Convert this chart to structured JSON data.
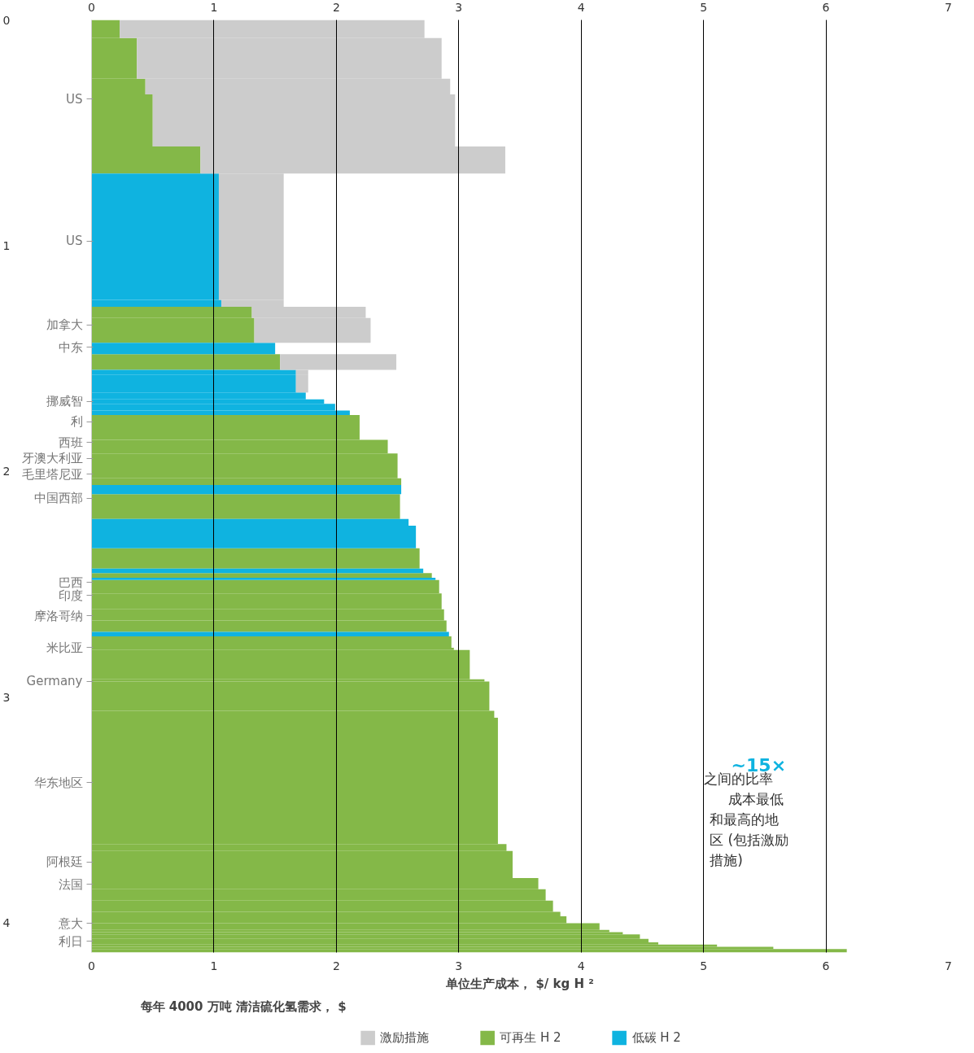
{
  "chart_data": {
    "type": "bar",
    "orientation": "horizontal",
    "stacked": true,
    "xlabel": "单位生产成本， $/ kg H ²",
    "x": [
      0.04,
      0.17,
      0.295,
      0.445,
      0.62,
      0.96,
      1.255,
      1.295,
      1.375,
      1.455,
      1.515,
      1.56,
      1.61,
      1.665,
      1.69,
      1.715,
      1.74,
      1.805,
      1.89,
      1.975,
      2.045,
      2.08,
      2.155,
      2.225,
      2.29,
      2.385,
      2.44,
      2.46,
      2.475,
      2.51,
      2.575,
      2.635,
      2.685,
      2.72,
      2.755,
      2.785,
      2.855,
      2.925,
      2.995,
      3.075,
      3.37,
      3.665,
      3.74,
      3.825,
      3.875,
      3.925,
      3.96,
      3.985,
      4.015,
      4.035,
      4.045,
      4.06,
      4.0775,
      4.09,
      4.1,
      4.11,
      4.1225
    ],
    "series": [
      {
        "name": "可再生 H 2",
        "color": "#84b848",
        "values": [
          0.23,
          0.37,
          0.44,
          0.5,
          0.89,
          null,
          null,
          1.31,
          1.33,
          null,
          1.54,
          null,
          null,
          null,
          null,
          null,
          null,
          2.19,
          2.42,
          2.5,
          2.53,
          null,
          2.52,
          null,
          null,
          2.68,
          null,
          2.78,
          null,
          2.84,
          2.86,
          2.88,
          2.9,
          null,
          2.94,
          2.96,
          3.09,
          3.21,
          3.25,
          3.29,
          3.32,
          3.39,
          3.44,
          3.65,
          3.71,
          3.77,
          3.83,
          3.88,
          4.15,
          4.23,
          4.34,
          4.48,
          4.55,
          4.63,
          5.11,
          5.57,
          6.17
        ]
      },
      {
        "name": "低碳 H 2",
        "color": "#0fb3e0",
        "values": [
          null,
          null,
          null,
          null,
          null,
          1.04,
          1.06,
          null,
          null,
          1.5,
          null,
          1.67,
          1.67,
          1.75,
          1.9,
          1.99,
          2.11,
          null,
          null,
          null,
          null,
          2.53,
          null,
          2.59,
          2.65,
          null,
          2.71,
          null,
          2.81,
          null,
          null,
          null,
          null,
          2.92,
          null,
          null,
          null,
          null,
          null,
          null,
          null,
          null,
          null,
          null,
          null,
          null,
          null,
          null,
          null,
          null,
          null,
          null,
          null,
          null,
          null,
          null,
          null
        ]
      },
      {
        "name": "激励措施",
        "color": "#cccccc",
        "values": [
          2.49,
          2.49,
          2.49,
          2.47,
          2.49,
          0.53,
          0.51,
          0.93,
          0.95,
          null,
          0.95,
          0.1,
          0.1,
          null,
          null,
          null,
          null,
          null,
          null,
          null,
          null,
          null,
          null,
          null,
          null,
          null,
          null,
          null,
          null,
          null,
          null,
          null,
          null,
          null,
          null,
          null,
          null,
          null,
          null,
          null,
          null,
          null,
          null,
          null,
          null,
          null,
          null,
          null,
          null,
          null,
          null,
          null,
          null,
          null,
          null,
          null,
          null
        ]
      }
    ],
    "xlim": [
      0,
      7
    ],
    "xticks": [
      0,
      1,
      2,
      3,
      4,
      5,
      6,
      7
    ],
    "x2lim": [
      0,
      7
    ],
    "x2ticks": [
      0,
      1,
      2,
      3,
      4,
      5,
      6,
      7
    ],
    "ylim": [
      4.13,
      0
    ],
    "yticks": [
      0,
      1,
      2,
      3,
      4
    ],
    "grid": "x",
    "legend": "bottom",
    "annotations": [
      "US",
      "US",
      "加拿大",
      "中东",
      "挪威智",
      "利",
      "西班",
      "牙澳大利亚",
      "毛里塔尼亚",
      "中国西部",
      "巴西",
      "印度",
      "摩洛哥纳",
      "米比亚",
      "Germany",
      "华东地区",
      "阿根廷",
      "法国",
      "意大",
      "利日",
      "~15×",
      "之间的比率",
      "成本最低",
      "和最高的地",
      "区 (包括激励",
      "措施)",
      "每年 4000 万吨 清洁硫化氢需求， $"
    ]
  }
}
